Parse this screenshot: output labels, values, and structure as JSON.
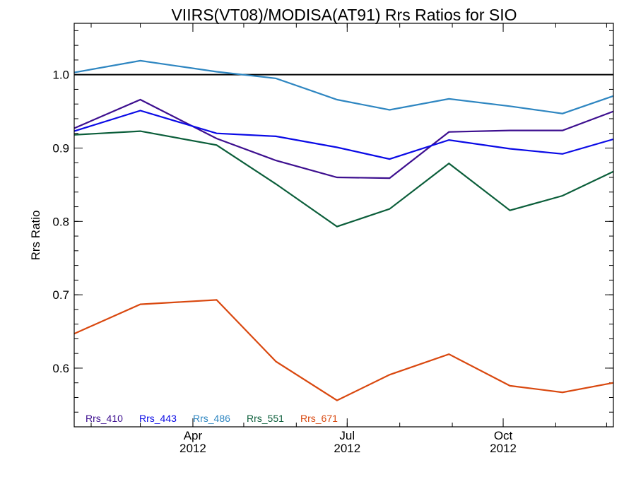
{
  "chart_data": {
    "type": "line",
    "title": "VIIRS(VT08)/MODISA(AT91)  Rrs Ratios for SIO",
    "ylabel": "Rrs Ratio",
    "xlabel": "",
    "xlim": [
      "2012-01-22",
      "2012-12-05"
    ],
    "ylim": [
      0.52,
      1.07
    ],
    "reference_line": 1.0,
    "x_ticks": [
      {
        "date": "2012-04-01",
        "month": "Apr",
        "year": "2012"
      },
      {
        "date": "2012-07-01",
        "month": "Jul",
        "year": "2012"
      },
      {
        "date": "2012-10-01",
        "month": "Oct",
        "year": "2012"
      }
    ],
    "y_ticks": [
      {
        "value": 0.6,
        "label": "0.6"
      },
      {
        "value": 0.7,
        "label": "0.7"
      },
      {
        "value": 0.8,
        "label": "0.8"
      },
      {
        "value": 0.9,
        "label": "0.9"
      },
      {
        "value": 1.0,
        "label": "1.0"
      }
    ],
    "x": [
      "2012-01-22",
      "2012-03-01",
      "2012-04-15",
      "2012-05-20",
      "2012-06-25",
      "2012-07-26",
      "2012-08-30",
      "2012-10-05",
      "2012-11-05",
      "2012-12-05"
    ],
    "series": [
      {
        "name": "Rrs_410",
        "color": "#3d0f8f",
        "values": [
          0.927,
          0.966,
          0.913,
          0.883,
          0.86,
          0.859,
          0.922,
          0.924,
          0.924,
          0.95
        ]
      },
      {
        "name": "Rrs_443",
        "color": "#0a0ae6",
        "values": [
          0.923,
          0.951,
          0.92,
          0.916,
          0.901,
          0.885,
          0.911,
          0.899,
          0.892,
          0.912
        ]
      },
      {
        "name": "Rrs_486",
        "color": "#2e86c1",
        "values": [
          1.003,
          1.019,
          1.004,
          0.995,
          0.966,
          0.952,
          0.967,
          0.957,
          0.947,
          0.971
        ]
      },
      {
        "name": "Rrs_551",
        "color": "#0b5e3a",
        "values": [
          0.918,
          0.923,
          0.904,
          0.851,
          0.793,
          0.817,
          0.879,
          0.815,
          0.835,
          0.868
        ]
      },
      {
        "name": "Rrs_671",
        "color": "#d9480f",
        "values": [
          0.647,
          0.687,
          0.693,
          0.609,
          0.556,
          0.591,
          0.619,
          0.576,
          0.567,
          0.58
        ]
      }
    ],
    "legend": {
      "placement": "bottom-left",
      "layout": "horizontal"
    },
    "grid": false
  }
}
